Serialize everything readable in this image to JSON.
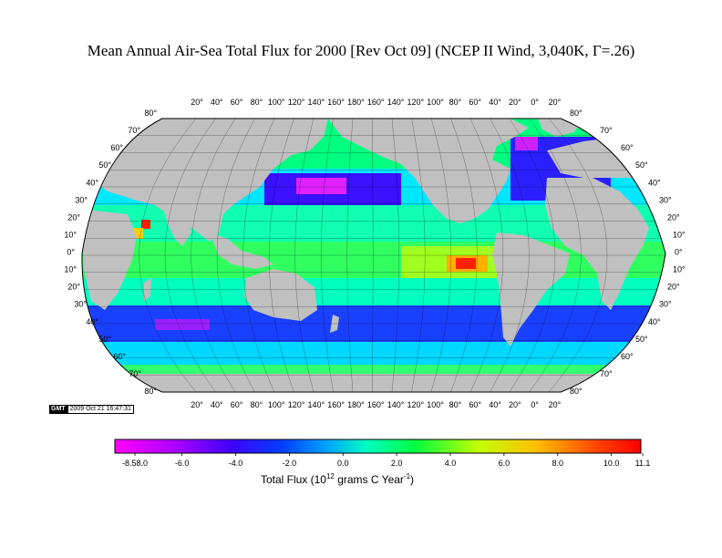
{
  "title": "Mean Annual Air-Sea Total Flux for 2000 [Rev Oct 09] (NCEP II Wind, 3,040K, Γ=.26)",
  "map": {
    "projection": "Winkel-like world projection (Pacific centered)",
    "top_lon_labels": [
      "20°",
      "40°",
      "60°",
      "80°",
      "100°",
      "120°",
      "140°",
      "160°",
      "180°",
      "160°",
      "140°",
      "120°",
      "100°",
      "80°",
      "60°",
      "40°",
      "20°",
      "0°",
      "20°"
    ],
    "bottom_lon_labels": [
      "20°",
      "40°",
      "60°",
      "80°",
      "100°",
      "120°",
      "140°",
      "160°",
      "180°",
      "160°",
      "140°",
      "120°",
      "100°",
      "80°",
      "60°",
      "40°",
      "20°",
      "0°",
      "20°"
    ],
    "lat_labels": [
      "80°",
      "70°",
      "60°",
      "50°",
      "40°",
      "30°",
      "20°",
      "10°",
      "0°",
      "10°",
      "20°",
      "30°",
      "40°",
      "50°",
      "60°",
      "70°",
      "80°"
    ],
    "land_color": "#c0c0c0",
    "ocean_fill_note": "gridded flux field colored by colorbar"
  },
  "gmt_stamp": {
    "logo": "GMT",
    "date": "2009 Oct 21 16:47:31"
  },
  "colorbar": {
    "ticks": [
      "-8.58.0",
      "-6.0",
      "-4.0",
      "-2.0",
      "0.0",
      "2.0",
      "4.0",
      "6.0",
      "8.0",
      "10.0",
      "11.1"
    ],
    "min": -8.5,
    "max": 11.1,
    "label_main": "Total Flux (10",
    "label_sup1": "12",
    "label_mid": " grams C Year",
    "label_sup2": "-1",
    "label_end": ")",
    "stops": [
      "#ff00ff",
      "#9a00ff",
      "#2a00ff",
      "#0080ff",
      "#00ffa0",
      "#00ff40",
      "#c0ff00",
      "#ffc000",
      "#ff4000",
      "#ff0000"
    ]
  }
}
